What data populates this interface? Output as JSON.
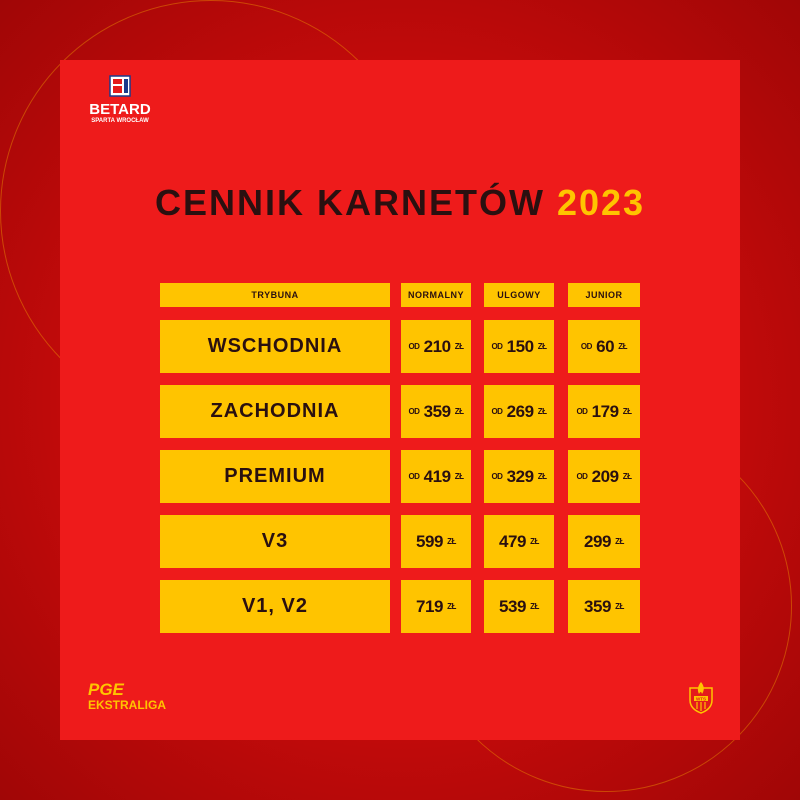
{
  "brand": {
    "name": "BETARD",
    "subtitle": "SPARTA WROCŁAW"
  },
  "title": {
    "main": "CENNIK KARNETÓW",
    "year": "2023"
  },
  "table": {
    "headers": [
      "TRYBUNA",
      "NORMALNY",
      "ULGOWY",
      "JUNIOR"
    ],
    "rows": [
      {
        "name": "WSCHODNIA",
        "prices": [
          {
            "prefix": "OD",
            "value": "210",
            "unit": "ZŁ"
          },
          {
            "prefix": "OD",
            "value": "150",
            "unit": "ZŁ"
          },
          {
            "prefix": "OD",
            "value": "60",
            "unit": "ZŁ"
          }
        ]
      },
      {
        "name": "ZACHODNIA",
        "prices": [
          {
            "prefix": "OD",
            "value": "359",
            "unit": "ZŁ"
          },
          {
            "prefix": "OD",
            "value": "269",
            "unit": "ZŁ"
          },
          {
            "prefix": "OD",
            "value": "179",
            "unit": "ZŁ"
          }
        ]
      },
      {
        "name": "PREMIUM",
        "prices": [
          {
            "prefix": "OD",
            "value": "419",
            "unit": "ZŁ"
          },
          {
            "prefix": "OD",
            "value": "329",
            "unit": "ZŁ"
          },
          {
            "prefix": "OD",
            "value": "209",
            "unit": "ZŁ"
          }
        ]
      },
      {
        "name": "V3",
        "prices": [
          {
            "value": "599",
            "unit": "ZŁ"
          },
          {
            "value": "479",
            "unit": "ZŁ"
          },
          {
            "value": "299",
            "unit": "ZŁ"
          }
        ]
      },
      {
        "name": "V1, V2",
        "prices": [
          {
            "value": "719",
            "unit": "ZŁ"
          },
          {
            "value": "539",
            "unit": "ZŁ"
          },
          {
            "value": "359",
            "unit": "ZŁ"
          }
        ]
      }
    ]
  },
  "footer": {
    "league_line1": "PGE",
    "league_line2": "EKSTRALIGA",
    "crest_text": "WTS"
  },
  "colors": {
    "card": "#ee1b1b",
    "accent": "#ffc400",
    "text": "#2a1010"
  }
}
